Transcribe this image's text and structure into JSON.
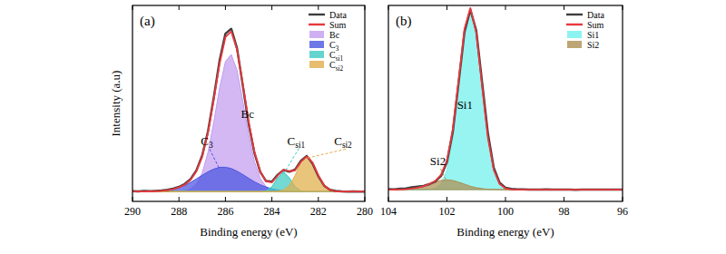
{
  "chart_data": [
    {
      "type": "line",
      "title": "(a)",
      "x_label": "Binding energy (eV)",
      "y_label": "Intensity (a.u)",
      "xlim": [
        290,
        280
      ],
      "xticks": [
        290,
        288,
        286,
        284,
        282,
        280
      ],
      "ylim": [
        0,
        100
      ],
      "tick_labels": "x",
      "legend": "upper right",
      "x": [
        290,
        289.75,
        289.5,
        289.25,
        289,
        288.75,
        288.5,
        288.25,
        288,
        287.75,
        287.5,
        287.25,
        287,
        286.75,
        286.5,
        286.25,
        286,
        285.75,
        285.5,
        285.25,
        285,
        284.75,
        284.5,
        284.25,
        284,
        283.75,
        283.5,
        283.25,
        283,
        282.75,
        282.5,
        282.25,
        282,
        281.75,
        281.5,
        281.25,
        281,
        280.75,
        280.5,
        280.25,
        280
      ],
      "series": [
        {
          "name": "Data",
          "type": "line",
          "color": "#3d3d3d",
          "values": [
            5.2,
            5.1,
            5.3,
            5.2,
            5.4,
            5.6,
            5.9,
            6.5,
            7.4,
            8.9,
            11.4,
            15.8,
            23.4,
            35.8,
            53.1,
            72.0,
            85.6,
            88.1,
            78.2,
            59.0,
            39.6,
            24.6,
            15.0,
            10.4,
            10.1,
            13.6,
            16.0,
            15.1,
            16.3,
            20.8,
            23.2,
            19.3,
            12.8,
            8.0,
            5.9,
            5.3,
            5.1,
            5.0,
            5.1,
            5.0,
            5.0
          ]
        },
        {
          "name": "Sum",
          "type": "line",
          "color": "#e8383d",
          "values": [
            5,
            5,
            5,
            5.1,
            5.2,
            5.4,
            5.7,
            6.2,
            7.2,
            8.5,
            11,
            15.3,
            22.8,
            35.1,
            52,
            70.4,
            83.8,
            86.8,
            77.4,
            59.8,
            40.7,
            25.2,
            15.2,
            10.2,
            9.7,
            13.2,
            16.2,
            15.4,
            15.8,
            20.2,
            23,
            19.8,
            13.2,
            8.1,
            5.8,
            5.1,
            5,
            5,
            5,
            5,
            5
          ]
        },
        {
          "name": "Bc",
          "type": "area",
          "color": "#c29cf0",
          "values": [
            5,
            5,
            5,
            5,
            5,
            5,
            5,
            5,
            5.1,
            5.3,
            6.3,
            8.8,
            14.5,
            25,
            40.5,
            58,
            71.4,
            75,
            67,
            51.1,
            33.9,
            20.2,
            11.7,
            7.5,
            5.8,
            5.2,
            5,
            5,
            5,
            5,
            5,
            5,
            5,
            5,
            5,
            5,
            5,
            5,
            5,
            5,
            5
          ]
        },
        {
          "name": "C3",
          "type": "area",
          "color": "#4a55e0",
          "values": [
            5,
            5,
            5,
            5.1,
            5.2,
            5.4,
            5.7,
            6.2,
            7.1,
            8.2,
            9.7,
            11.5,
            13.3,
            15.1,
            16.5,
            17.4,
            17.4,
            16.8,
            15.4,
            13.7,
            11.8,
            10,
            8.5,
            7.3,
            6.4,
            5.8,
            5.4,
            5.2,
            5.1,
            5,
            5,
            5,
            5,
            5,
            5,
            5,
            5,
            5,
            5,
            5,
            5
          ]
        },
        {
          "name": "Csi1",
          "type": "area",
          "color": "#3ccbc2",
          "values": [
            5,
            5,
            5,
            5,
            5,
            5,
            5,
            5,
            5,
            5,
            5,
            5,
            5,
            5,
            5,
            5,
            5,
            5,
            5,
            5,
            5,
            5,
            5,
            5.4,
            7.5,
            12.1,
            15,
            12.1,
            7.5,
            5.4,
            5,
            5,
            5,
            5,
            5,
            5,
            5,
            5,
            5,
            5,
            5
          ]
        },
        {
          "name": "Csi2",
          "type": "area",
          "color": "#e0ae4a",
          "values": [
            5,
            5,
            5,
            5,
            5,
            5,
            5,
            5,
            5,
            5,
            5,
            5,
            5,
            5,
            5,
            5,
            5,
            5,
            5,
            5,
            5,
            5,
            5,
            5,
            5,
            5.1,
            5.8,
            8.1,
            13.2,
            19.8,
            23,
            19.8,
            13.2,
            8.1,
            5.8,
            5.1,
            5,
            5,
            5,
            5,
            5
          ]
        }
      ]
    },
    {
      "type": "line",
      "title": "(b)",
      "x_label": "Binding energy (eV)",
      "xlim": [
        104,
        96
      ],
      "xticks": [
        104,
        102,
        100,
        98,
        96
      ],
      "ylim": [
        0,
        100
      ],
      "tick_labels": "x",
      "legend": "upper right",
      "x": [
        104,
        103.8,
        103.6,
        103.4,
        103.2,
        103,
        102.8,
        102.6,
        102.4,
        102.2,
        102,
        101.8,
        101.6,
        101.4,
        101.2,
        101,
        100.8,
        100.6,
        100.4,
        100.2,
        100,
        99.8,
        99.6,
        99.4,
        99.2,
        99,
        98.8,
        98.6,
        98.4,
        98.2,
        98,
        97.8,
        97.6,
        97.4,
        97.2,
        97,
        96.8,
        96.6,
        96.4,
        96.2,
        96
      ],
      "series": [
        {
          "name": "Data",
          "type": "line",
          "color": "#3d3d3d",
          "values": [
            6.3,
            6.2,
            6.5,
            6.6,
            7.2,
            7.6,
            7.9,
            8.8,
            10.1,
            13.0,
            20.0,
            35.5,
            60.8,
            86.5,
            97.8,
            87.4,
            61.0,
            34.8,
            17.2,
            9.5,
            7.0,
            6.4,
            6.2,
            6.1,
            6.0,
            6,
            6,
            6.1,
            6,
            6,
            6,
            6,
            5.9,
            6,
            6,
            6,
            6,
            6,
            6,
            6,
            6
          ]
        },
        {
          "name": "Sum",
          "type": "line",
          "color": "#e8383d",
          "values": [
            6,
            6,
            6.1,
            6.2,
            6.5,
            7,
            7.7,
            8.9,
            10.4,
            13.6,
            20.9,
            36.9,
            62.1,
            88.1,
            98.7,
            86.3,
            58.8,
            32.4,
            16,
            8.9,
            6.6,
            6.1,
            6,
            6,
            6,
            6,
            6,
            6,
            6,
            6,
            6,
            6,
            6,
            6,
            6,
            6,
            6,
            6,
            6,
            6,
            6
          ]
        },
        {
          "name": "Si1",
          "type": "area",
          "color": "#6ff0ec",
          "values": [
            6,
            6,
            6,
            6,
            6,
            6,
            6,
            6.1,
            6.6,
            8.9,
            15.9,
            32.2,
            58.3,
            85.3,
            97,
            85.3,
            58.3,
            32.2,
            15.9,
            8.9,
            6.6,
            6.1,
            6,
            6,
            6,
            6,
            6,
            6,
            6,
            6,
            6,
            6,
            6,
            6,
            6,
            6,
            6,
            6,
            6,
            6,
            6
          ]
        },
        {
          "name": "Si2",
          "type": "area",
          "color": "#ad8f52",
          "values": [
            6,
            6,
            6.1,
            6.2,
            6.5,
            7,
            7.7,
            8.8,
            9.8,
            10.7,
            11,
            10.7,
            9.8,
            8.8,
            7.7,
            7,
            6.5,
            6.2,
            6.1,
            6,
            6,
            6,
            6,
            6,
            6,
            6,
            6,
            6,
            6,
            6,
            6,
            6,
            6,
            6,
            6,
            6,
            6,
            6,
            6,
            6,
            6
          ]
        }
      ]
    }
  ]
}
